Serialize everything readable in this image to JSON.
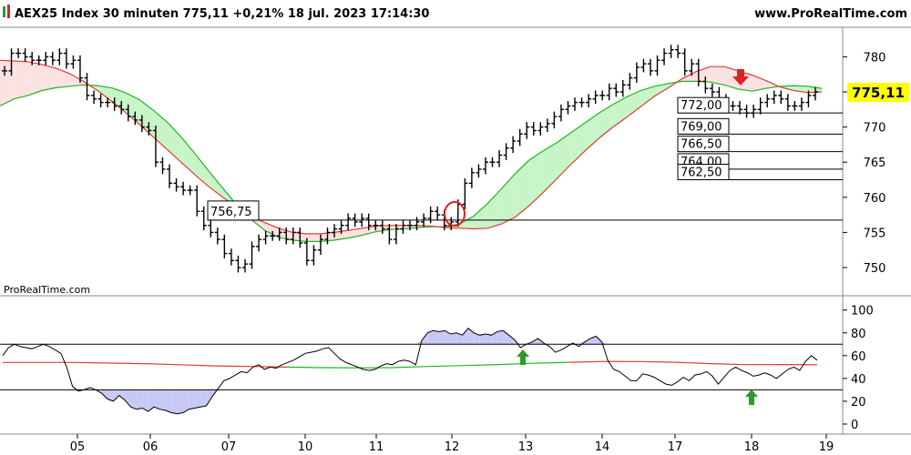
{
  "header": {
    "title": "AEX25 Index 30 minuten 775,11 +0,21% 18 jul. 2023 17:14:30",
    "site": "www.ProRealTime.com"
  },
  "watermark": "ProRealTime.com",
  "colors": {
    "bar": "#000000",
    "fast_ma": "#e53935",
    "slow_ma": "#22b522",
    "cloud_bull": "#c8f5c8",
    "cloud_bear": "#fbe2e2",
    "rsi_fill": "#c8c8f5",
    "rsi_ma": "#22b522",
    "rsi_ma_down": "#e53935",
    "marker_circle": "#dd2222",
    "arrow_down": "#dd2222",
    "arrow_up": "#2e9a2e",
    "price_badge": "#ffff00"
  },
  "chart_data": [
    {
      "type": "ohlc",
      "name": "price",
      "x_categories": [
        "05",
        "06",
        "07",
        "10",
        "11",
        "12",
        "13",
        "14",
        "17",
        "18",
        "19"
      ],
      "y_ticks": [
        "750",
        "755",
        "760",
        "765",
        "770",
        "775",
        "780"
      ],
      "ylim": [
        747,
        786
      ],
      "last_price": "775,11",
      "levels": [
        "756,75",
        "772,00",
        "769,00",
        "766,50",
        "764,00",
        "762,50"
      ],
      "closes": [
        778,
        780.5,
        780.5,
        780,
        779.5,
        779.5,
        780,
        779.5,
        780.5,
        779,
        779.5,
        777,
        774.5,
        774,
        773.5,
        773.5,
        773,
        772.5,
        771.5,
        771,
        770,
        769.5,
        765,
        764,
        762,
        761.5,
        761,
        761,
        758,
        756,
        755,
        754,
        752,
        751,
        750,
        750.5,
        753,
        754,
        754.5,
        754.5,
        755,
        754,
        755,
        753.5,
        751,
        752.5,
        754,
        755,
        755.5,
        756,
        757,
        756.5,
        757,
        756,
        756,
        755.5,
        754,
        755.5,
        756,
        756,
        756.5,
        757,
        758,
        757.5,
        756,
        756.5,
        759,
        762,
        763.5,
        764,
        765,
        765,
        766,
        767,
        768,
        769,
        770,
        769.5,
        770,
        770.5,
        771.5,
        772.5,
        773,
        773.5,
        773.5,
        774,
        774.5,
        774.5,
        775.5,
        775,
        776,
        777,
        778.5,
        779,
        778,
        779.5,
        780.5,
        781,
        780.5,
        778,
        779,
        776.5,
        775.5,
        775,
        774,
        773,
        773,
        772.5,
        772,
        772.5,
        773.5,
        774,
        774.5,
        774,
        773,
        773,
        773.5,
        774.5,
        775
      ],
      "fast_ma": [
        779.5,
        779.4,
        779.3,
        778.9,
        778.4,
        777.6,
        776.5,
        775.2,
        773.7,
        772.1,
        770.4,
        768.6,
        766.8,
        765,
        763.2,
        761.5,
        760,
        758.6,
        757.4,
        756.4,
        755.6,
        755,
        754.8,
        754.8,
        755,
        755.3,
        755.6,
        755.9,
        756,
        756,
        756,
        755.9,
        755.7,
        755.6,
        755.5,
        755.6,
        756.2,
        757.2,
        758.8,
        760.7,
        762.7,
        764.7,
        766.6,
        768.4,
        770,
        771.4,
        772.9,
        774.4,
        775.6,
        776.9,
        777.9,
        778.6,
        778.6,
        778,
        777.4,
        776.6,
        775.7,
        775.2,
        774.9,
        775
      ],
      "slow_ma": [
        773,
        774,
        774.5,
        775.2,
        775.6,
        775.8,
        776,
        775.9,
        775.6,
        774.9,
        773.9,
        772.4,
        770.7,
        768.6,
        766.2,
        763.7,
        761.3,
        758.9,
        756.9,
        755.3,
        754.3,
        753.9,
        753.7,
        753.7,
        753.9,
        754.2,
        754.6,
        755.1,
        755.4,
        755.5,
        755.7,
        755.8,
        755.8,
        756.2,
        757.3,
        759.1,
        761.2,
        763.4,
        765.3,
        766.6,
        767.8,
        769.2,
        770.6,
        772,
        773.2,
        774.3,
        775.2,
        775.8,
        776.2,
        776.5,
        776.5,
        776.4,
        776,
        775.4,
        775.1,
        775.5,
        775.8,
        775.9,
        775.8,
        775.5
      ]
    },
    {
      "type": "line",
      "name": "oscillator",
      "y_ticks": [
        "0",
        "20",
        "40",
        "60",
        "80",
        "100"
      ],
      "ylim": [
        0,
        100
      ],
      "bands": [
        30,
        70
      ],
      "values": [
        60,
        67,
        70,
        68,
        67,
        66,
        68,
        70,
        68,
        65,
        62,
        50,
        33,
        29,
        30,
        32,
        30,
        27,
        22,
        20,
        25,
        21,
        15,
        13,
        14,
        11,
        15,
        13,
        12,
        10,
        9,
        10,
        13,
        14,
        15,
        16,
        24,
        31,
        38,
        40,
        43,
        46,
        45,
        50,
        52,
        48,
        50,
        49,
        52,
        54,
        56,
        59,
        62,
        63,
        64,
        66,
        67,
        62,
        57,
        54,
        52,
        50,
        48,
        47,
        48,
        51,
        53,
        52,
        55,
        56,
        55,
        52,
        73,
        80,
        82,
        81,
        82,
        79,
        80,
        78,
        84,
        80,
        78,
        79,
        78,
        81,
        82,
        78,
        74,
        67,
        70,
        72,
        75,
        71,
        68,
        63,
        65,
        68,
        71,
        68,
        72,
        75,
        77,
        72,
        56,
        48,
        46,
        42,
        38,
        38,
        44,
        43,
        41,
        38,
        35,
        34,
        37,
        41,
        38,
        43,
        44,
        46,
        42,
        35,
        41,
        47,
        50,
        47,
        45,
        42,
        43,
        45,
        43,
        40,
        44,
        48,
        50,
        47,
        55,
        60,
        56
      ],
      "ma": [
        54,
        54,
        54,
        53.5,
        53,
        52,
        51,
        50.5,
        50,
        49.5,
        49.3,
        49.5,
        50.5,
        51.3,
        52.2,
        53.3,
        54.2,
        54.9,
        54.8,
        54.2,
        53,
        52.1,
        52.2,
        52
      ]
    }
  ]
}
